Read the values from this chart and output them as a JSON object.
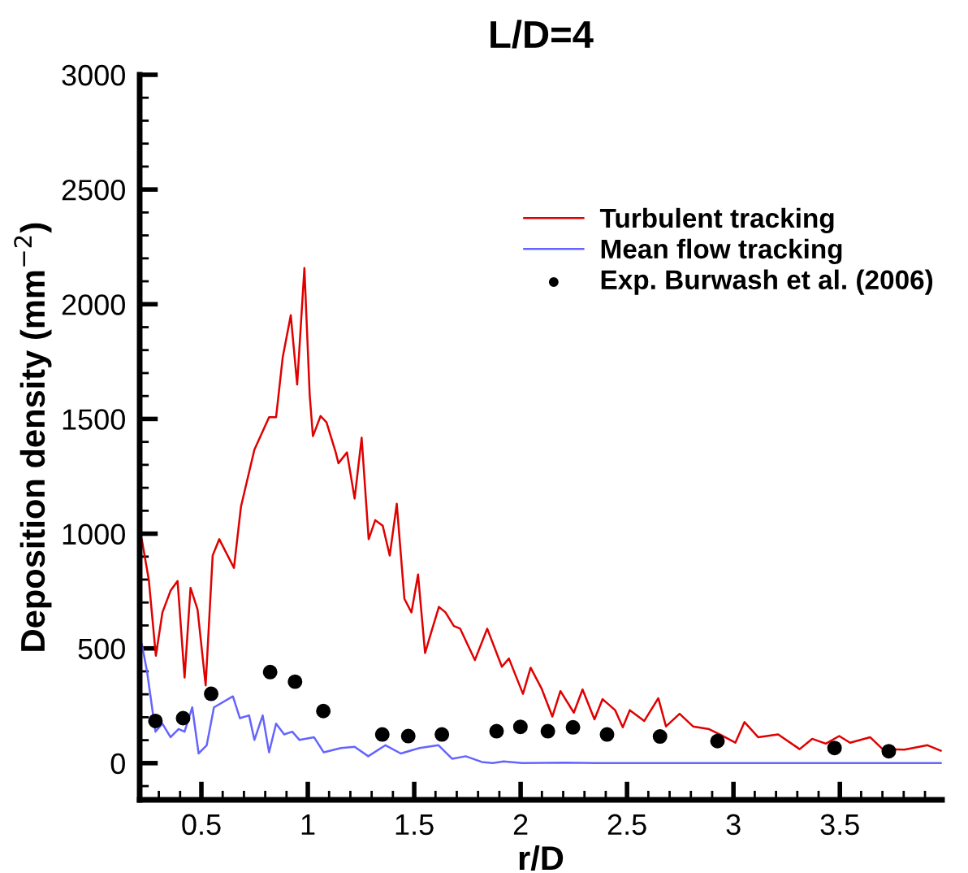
{
  "chart_data": {
    "type": "line",
    "title": "L/D=4",
    "xlabel": "r/D",
    "ylabel": "Deposition density (mm$^{−2}$)",
    "xlim": [
      0.21,
      3.98
    ],
    "ylim": [
      -160,
      3000
    ],
    "xticks": [
      {
        "value": 0.3,
        "label": null
      },
      {
        "value": 0.4,
        "label": null
      },
      0.5,
      {
        "value": 0.6,
        "label": null
      },
      {
        "value": 0.7,
        "label": null
      },
      {
        "value": 0.8,
        "label": null
      },
      {
        "value": 0.9,
        "label": null
      },
      1,
      {
        "value": 1.1,
        "label": null
      },
      {
        "value": 1.2,
        "label": null
      },
      {
        "value": 1.3,
        "label": null
      },
      {
        "value": 1.4,
        "label": null
      },
      1.5,
      {
        "value": 1.6,
        "label": null
      },
      {
        "value": 1.7,
        "label": null
      },
      {
        "value": 1.8,
        "label": null
      },
      {
        "value": 1.9,
        "label": null
      },
      2,
      {
        "value": 2.1,
        "label": null
      },
      {
        "value": 2.2,
        "label": null
      },
      {
        "value": 2.3,
        "label": null
      },
      {
        "value": 2.4,
        "label": null
      },
      2.5,
      {
        "value": 2.6,
        "label": null
      },
      {
        "value": 2.7,
        "label": null
      },
      {
        "value": 2.8,
        "label": null
      },
      {
        "value": 2.9,
        "label": null
      },
      3,
      {
        "value": 3.1,
        "label": null
      },
      {
        "value": 3.2,
        "label": null
      },
      {
        "value": 3.3,
        "label": null
      },
      {
        "value": 3.4,
        "label": null
      },
      3.5,
      {
        "value": 3.6,
        "label": null
      },
      {
        "value": 3.7,
        "label": null
      },
      {
        "value": 3.8,
        "label": null
      },
      {
        "value": 3.9,
        "label": null
      }
    ],
    "yticks": [
      {
        "value": -100,
        "label": null
      },
      0,
      {
        "value": 100,
        "label": null
      },
      {
        "value": 200,
        "label": null
      },
      {
        "value": 300,
        "label": null
      },
      {
        "value": 400,
        "label": null
      },
      500,
      {
        "value": 600,
        "label": null
      },
      {
        "value": 700,
        "label": null
      },
      {
        "value": 800,
        "label": null
      },
      {
        "value": 900,
        "label": null
      },
      1000,
      {
        "value": 1100,
        "label": null
      },
      {
        "value": 1200,
        "label": null
      },
      {
        "value": 1300,
        "label": null
      },
      {
        "value": 1400,
        "label": null
      },
      1500,
      {
        "value": 1600,
        "label": null
      },
      {
        "value": 1700,
        "label": null
      },
      {
        "value": 1800,
        "label": null
      },
      {
        "value": 1900,
        "label": null
      },
      2000,
      {
        "value": 2100,
        "label": null
      },
      {
        "value": 2200,
        "label": null
      },
      {
        "value": 2300,
        "label": null
      },
      {
        "value": 2400,
        "label": null
      },
      2500,
      {
        "value": 2600,
        "label": null
      },
      {
        "value": 2700,
        "label": null
      },
      {
        "value": 2800,
        "label": null
      },
      {
        "value": 2900,
        "label": null
      },
      3000
    ],
    "grid": false,
    "legend": "right",
    "series": [
      {
        "name": "Turbulent tracking",
        "color": "#e00000",
        "marker": "none",
        "line_style": "solid",
        "x": [
          0.22,
          0.253,
          0.286,
          0.317,
          0.355,
          0.388,
          0.421,
          0.449,
          0.482,
          0.52,
          0.553,
          0.584,
          0.653,
          0.686,
          0.749,
          0.818,
          0.851,
          0.882,
          0.92,
          0.95,
          0.984,
          1.009,
          1.024,
          1.06,
          1.088,
          1.131,
          1.144,
          1.184,
          1.22,
          1.253,
          1.286,
          1.317,
          1.352,
          1.385,
          1.418,
          1.454,
          1.487,
          1.518,
          1.551,
          1.581,
          1.616,
          1.647,
          1.686,
          1.716,
          1.785,
          1.843,
          1.912,
          1.945,
          2.011,
          2.047,
          2.098,
          2.149,
          2.187,
          2.25,
          2.291,
          2.347,
          2.385,
          2.444,
          2.48,
          2.513,
          2.581,
          2.647,
          2.683,
          2.747,
          2.81,
          2.886,
          2.937,
          3.009,
          3.052,
          3.116,
          3.21,
          3.311,
          3.37,
          3.434,
          3.497,
          3.548,
          3.642,
          3.701,
          3.803,
          3.912,
          3.975
        ],
        "values": [
          975,
          798,
          468,
          657,
          751,
          794,
          373,
          764,
          669,
          339,
          905,
          976,
          851,
          1118,
          1366,
          1508,
          1508,
          1768,
          1952,
          1650,
          2158,
          1603,
          1425,
          1513,
          1485,
          1355,
          1307,
          1354,
          1153,
          1418,
          976,
          1059,
          1035,
          905,
          1130,
          716,
          657,
          822,
          480,
          574,
          681,
          657,
          598,
          586,
          449,
          586,
          420,
          456,
          302,
          416,
          326,
          203,
          314,
          220,
          321,
          191,
          279,
          231,
          156,
          231,
          184,
          283,
          160,
          215,
          160,
          148,
          125,
          89,
          179,
          113,
          125,
          61,
          106,
          85,
          118,
          89,
          113,
          61,
          59,
          78,
          54
        ]
      },
      {
        "name": "Mean flow tracking",
        "color": "#6464ff",
        "marker": "none",
        "line_style": "solid",
        "x": [
          0.22,
          0.245,
          0.284,
          0.317,
          0.355,
          0.393,
          0.421,
          0.457,
          0.487,
          0.525,
          0.559,
          0.648,
          0.681,
          0.724,
          0.749,
          0.788,
          0.818,
          0.851,
          0.889,
          0.927,
          0.961,
          1.029,
          1.075,
          1.156,
          1.22,
          1.284,
          1.365,
          1.437,
          1.525,
          1.614,
          1.678,
          1.742,
          1.818,
          1.869,
          1.92,
          2.009,
          2.212,
          2.352,
          3.975
        ],
        "values": [
          520,
          397,
          137,
          172,
          113,
          149,
          137,
          243,
          42,
          78,
          243,
          291,
          196,
          208,
          101,
          208,
          47,
          172,
          125,
          137,
          101,
          113,
          47,
          66,
          71,
          30,
          78,
          42,
          66,
          78,
          19,
          30,
          5,
          0,
          7,
          0,
          2,
          0,
          0
        ]
      },
      {
        "name": "Exp. Burwash et al. (2006)",
        "type": "scatter",
        "color": "#000000",
        "marker": "circle",
        "x": [
          0.284,
          0.414,
          0.546,
          0.823,
          0.94,
          1.073,
          1.35,
          1.472,
          1.63,
          1.887,
          1.999,
          2.128,
          2.246,
          2.406,
          2.655,
          2.925,
          3.475,
          3.73
        ],
        "values": [
          184,
          196,
          302,
          397,
          355,
          227,
          125,
          118,
          125,
          139,
          158,
          139,
          156,
          125,
          116,
          96,
          66,
          52
        ]
      }
    ]
  }
}
